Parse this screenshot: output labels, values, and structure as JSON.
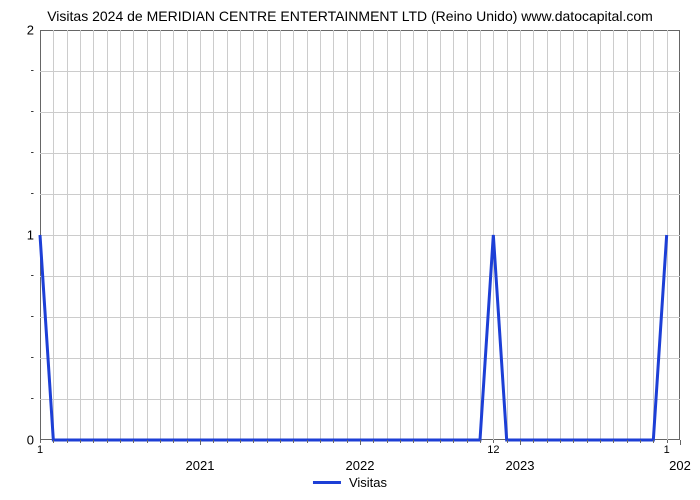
{
  "chart": {
    "type": "line",
    "title": "Visitas 2024 de MERIDIAN CENTRE ENTERTAINMENT LTD (Reino Unido) www.datocapital.com",
    "title_fontsize": 14,
    "background_color": "#ffffff",
    "grid_color": "#cccccc",
    "border_color": "#666666",
    "line_color": "#1d3fd6",
    "line_width": 3,
    "y_major_ticks": [
      0,
      1,
      2
    ],
    "y_minor_count_between": 4,
    "ylim": [
      0,
      2
    ],
    "x_range_months": 48,
    "x_major_ticks_label": [
      "2021",
      "2022",
      "2023",
      "202"
    ],
    "x_major_ticks_month": [
      12,
      24,
      36,
      48
    ],
    "x_minor_labels": [
      {
        "month": 0,
        "label": "1"
      },
      {
        "month": 34,
        "label": "12"
      },
      {
        "month": 47,
        "label": "1"
      }
    ],
    "x_minor_ticks_every": 1,
    "series_points": [
      {
        "m": 0,
        "v": 1
      },
      {
        "m": 1,
        "v": 0
      },
      {
        "m": 33,
        "v": 0
      },
      {
        "m": 34,
        "v": 1
      },
      {
        "m": 35,
        "v": 0
      },
      {
        "m": 46,
        "v": 0
      },
      {
        "m": 47,
        "v": 1
      }
    ],
    "legend_label": "Visitas"
  }
}
